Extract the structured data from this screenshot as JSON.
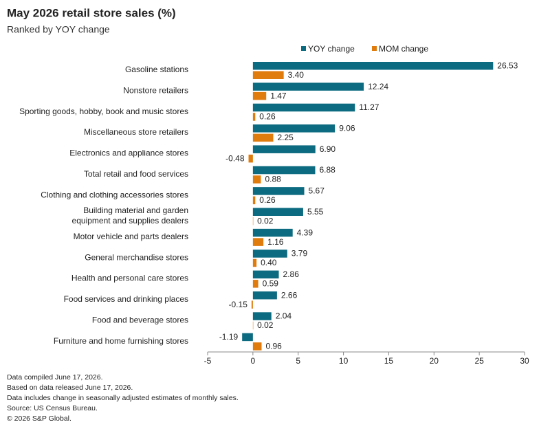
{
  "chart_data": {
    "type": "hbar",
    "title": "May 2026 retail store sales (%)",
    "subtitle": "Ranked by YOY change",
    "categories": [
      "Gasoline stations",
      "Nonstore retailers",
      "Sporting goods, hobby, book and music stores",
      "Miscellaneous store retailers",
      "Electronics and appliance stores",
      "Total retail and food services",
      "Clothing and clothing accessories stores",
      "Building material and garden\nequipment and supplies dealers",
      "Motor vehicle and parts dealers",
      "General merchandise stores",
      "Health and personal care stores",
      "Food services and drinking places",
      "Food and beverage stores",
      "Furniture and home furnishing stores"
    ],
    "series": [
      {
        "name": "YOY change",
        "color": "#0c6b80",
        "values": [
          26.53,
          12.24,
          11.27,
          9.06,
          6.9,
          6.88,
          5.67,
          5.55,
          4.39,
          3.79,
          2.86,
          2.66,
          2.04,
          -1.19
        ],
        "value_labels": [
          "26.53",
          "12.24",
          "11.27",
          "9.06",
          "6.90",
          "6.88",
          "5.67",
          "5.55",
          "4.39",
          "3.79",
          "2.86",
          "2.66",
          "2.04",
          "-1.19"
        ]
      },
      {
        "name": "MOM change",
        "color": "#e07b0e",
        "values": [
          3.4,
          1.47,
          0.26,
          2.25,
          -0.48,
          0.88,
          0.26,
          0.02,
          1.16,
          0.4,
          0.59,
          -0.15,
          0.02,
          0.96
        ],
        "value_labels": [
          "3.40",
          "1.47",
          "0.26",
          "2.25",
          "-0.48",
          "0.88",
          "0.26",
          "0.02",
          "1.16",
          "0.40",
          "0.59",
          "-0.15",
          "0.02",
          "0.96"
        ]
      }
    ],
    "xlim": [
      -5,
      30
    ],
    "xticks": [
      -5,
      0,
      5,
      10,
      15,
      20,
      25,
      30
    ],
    "legend": "top",
    "notes": [
      "Data compiled June 17, 2026.",
      "Based on data released June 17, 2026.",
      "Data includes change in seasonally adjusted estimates of monthly sales.",
      "Source: US Census Bureau.",
      "© 2026 S&P Global."
    ]
  }
}
